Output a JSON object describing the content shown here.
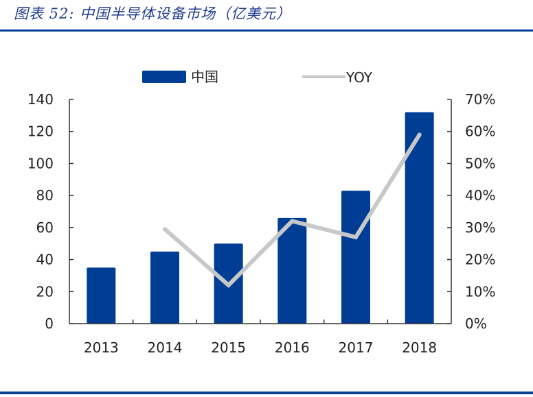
{
  "header": {
    "title": "图表 52:  中国半导体设备市场（亿美元）"
  },
  "colors": {
    "bar": "#003E96",
    "line": "#C8C8C8",
    "title": "#1F3C8C",
    "rule": "#003E96"
  },
  "legend": {
    "bar_label": "中国",
    "line_label": "YOY"
  },
  "chart_data": {
    "type": "bar",
    "title": "中国半导体设备市场（亿美元）",
    "xlabel": "",
    "ylabel": "",
    "categories": [
      "2013",
      "2014",
      "2015",
      "2016",
      "2017",
      "2018"
    ],
    "series": [
      {
        "name": "中国",
        "type": "bar",
        "axis": "left",
        "values": [
          35,
          45,
          50,
          66,
          83,
          132
        ]
      },
      {
        "name": "YOY",
        "type": "line",
        "axis": "right",
        "values": [
          null,
          29.5,
          12,
          32,
          27,
          59
        ]
      }
    ],
    "ylim": [
      0,
      140
    ],
    "y_ticks": [
      "0",
      "20",
      "40",
      "60",
      "80",
      "100",
      "120",
      "140"
    ],
    "y2lim": [
      0,
      70
    ],
    "y2_ticks": [
      "0%",
      "10%",
      "20%",
      "30%",
      "40%",
      "50%",
      "60%",
      "70%"
    ],
    "grid": false,
    "legend_position": "top"
  }
}
